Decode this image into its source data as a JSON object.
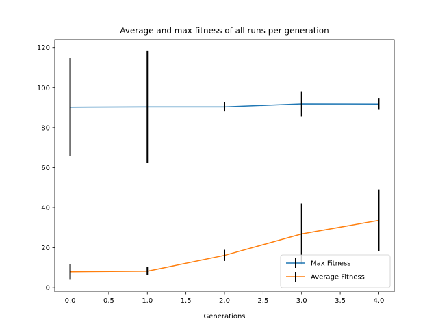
{
  "chart_data": {
    "type": "line",
    "title": "Average and max fitness of all runs per generation",
    "xlabel": "Generations",
    "ylabel": "",
    "xlim": [
      -0.2,
      4.2
    ],
    "ylim": [
      -2,
      124
    ],
    "xticks": [
      0.0,
      0.5,
      1.0,
      1.5,
      2.0,
      2.5,
      3.0,
      3.5,
      4.0
    ],
    "xtick_labels": [
      "0.0",
      "0.5",
      "1.0",
      "1.5",
      "2.0",
      "2.5",
      "3.0",
      "3.5",
      "4.0"
    ],
    "yticks": [
      0,
      20,
      40,
      60,
      80,
      100,
      120
    ],
    "ytick_labels": [
      "0",
      "20",
      "40",
      "60",
      "80",
      "100",
      "120"
    ],
    "grid": false,
    "legend": "lower-right",
    "error_bar_color": "#000000",
    "x": [
      0,
      1,
      2,
      3,
      4
    ],
    "series": [
      {
        "name": "Max Fitness",
        "color": "#1f77b4",
        "values": [
          90.3,
          90.4,
          90.4,
          91.9,
          91.8
        ],
        "error": [
          24.5,
          28.2,
          2.3,
          6.3,
          2.8
        ]
      },
      {
        "name": "Average Fitness",
        "color": "#ff7f0e",
        "values": [
          8.0,
          8.3,
          16.2,
          26.9,
          33.7
        ],
        "error": [
          4.0,
          2.0,
          2.8,
          15.3,
          15.3
        ]
      }
    ]
  }
}
